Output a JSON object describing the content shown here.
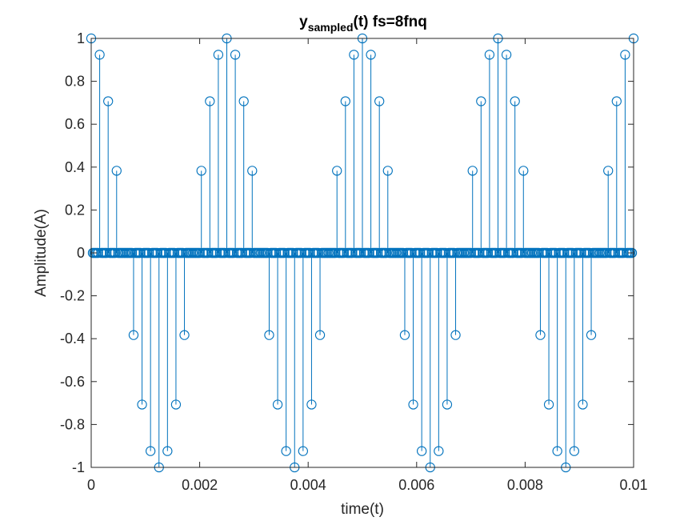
{
  "chart_data": {
    "type": "stem",
    "title": {
      "main": "y",
      "subscript": "sampled",
      "suffix": "(t) fs=8fnq"
    },
    "xlabel": "time(t)",
    "ylabel": "Amplitude(A)",
    "xlim": [
      0,
      0.01
    ],
    "ylim": [
      -1,
      1
    ],
    "xticks": [
      0,
      0.002,
      0.004,
      0.006,
      0.008,
      0.01
    ],
    "xtick_labels": [
      "0",
      "0.002",
      "0.004",
      "0.006",
      "0.008",
      "0.01"
    ],
    "yticks": [
      -1,
      -0.8,
      -0.6,
      -0.4,
      -0.2,
      0,
      0.2,
      0.4,
      0.6,
      0.8,
      1
    ],
    "ytick_labels": [
      "-1",
      "-0.8",
      "-0.6",
      "-0.4",
      "-0.2",
      "0",
      "0.2",
      "0.4",
      "0.6",
      "0.8",
      "1"
    ],
    "grid": false,
    "box": true,
    "color": "#0072BD",
    "series": [
      {
        "signal": "cos(2*pi*400*t), nonzero every 5th sample",
        "sample_period": 3.125e-05,
        "sample_count": 321,
        "nonzero_samples": {
          "t": [
            0,
            0.00015625,
            0.0003125,
            0.00046875,
            0.000625,
            0.00078125,
            0.0009375,
            0.00109375,
            0.00125,
            0.00140625,
            0.0015625,
            0.00171875,
            0.001875,
            0.00203125,
            0.0021875,
            0.00234375,
            0.0025,
            0.00265625,
            0.0028125,
            0.00296875,
            0.003125,
            0.00328125,
            0.0034375,
            0.00359375,
            0.00375,
            0.00390625,
            0.0040625,
            0.00421875,
            0.004375,
            0.00453125,
            0.0046875,
            0.00484375,
            0.005,
            0.00515625,
            0.0053125,
            0.00546875,
            0.005625,
            0.00578125,
            0.0059375,
            0.00609375,
            0.00625,
            0.00640625,
            0.0065625,
            0.00671875,
            0.006875,
            0.00703125,
            0.0071875,
            0.00734375,
            0.0075,
            0.00765625,
            0.0078125,
            0.00796875,
            0.008125,
            0.00828125,
            0.0084375,
            0.00859375,
            0.00875,
            0.00890625,
            0.0090625,
            0.00921875,
            0.009375,
            0.00953125,
            0.0096875,
            0.00984375,
            0.01
          ],
          "y": [
            1,
            0.924,
            0.707,
            0.383,
            0,
            -0.383,
            -0.707,
            -0.924,
            -1,
            -0.924,
            -0.707,
            -0.383,
            0,
            0.383,
            0.707,
            0.924,
            1,
            0.924,
            0.707,
            0.383,
            0,
            -0.383,
            -0.707,
            -0.924,
            -1,
            -0.924,
            -0.707,
            -0.383,
            0,
            0.383,
            0.707,
            0.924,
            1,
            0.924,
            0.707,
            0.383,
            0,
            -0.383,
            -0.707,
            -0.924,
            -1,
            -0.924,
            -0.707,
            -0.383,
            0,
            0.383,
            0.707,
            0.924,
            1,
            0.924,
            0.707,
            0.383,
            0,
            -0.383,
            -0.707,
            -0.924,
            -1,
            -0.924,
            -0.707,
            -0.383,
            0,
            0.383,
            0.707,
            0.924,
            1
          ]
        },
        "other_samples_value": 0
      }
    ]
  }
}
